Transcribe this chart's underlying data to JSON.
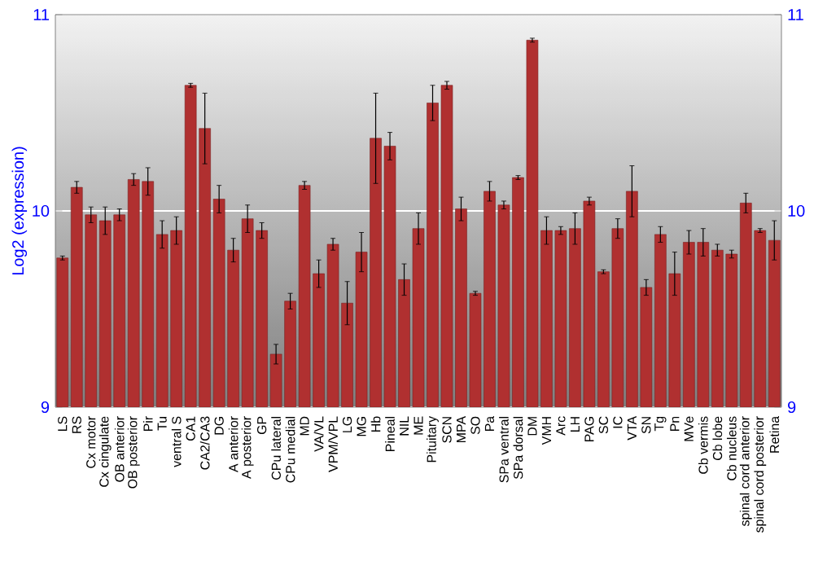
{
  "chart_data": {
    "type": "bar",
    "ylabel": "Log2 (expression)",
    "categories": [
      "LS",
      "RS",
      "Cx motor",
      "Cx cingulate",
      "OB anterior",
      "OB posterior",
      "Pir",
      "Tu",
      "ventral S",
      "CA1",
      "CA2/CA3",
      "DG",
      "A anterior",
      "A posterior",
      "GP",
      "CPu lateral",
      "CPu medial",
      "MD",
      "VA/VL",
      "VPM/VPL",
      "LG",
      "MG",
      "Hb",
      "Pineal",
      "NIL",
      "ME",
      "Pituitary",
      "SCN",
      "MPA",
      "SO",
      "Pa",
      "SPa ventral",
      "SPa dorsal",
      "DM",
      "VMH",
      "Arc",
      "LH",
      "PAG",
      "SC",
      "IC",
      "VTA",
      "SN",
      "Tg",
      "Pn",
      "MVe",
      "Cb vermis",
      "Cb lobe",
      "Cb nucleus",
      "spinal cord anterior",
      "spinal cord posterior",
      "Retina"
    ],
    "values": [
      9.76,
      10.12,
      9.98,
      9.95,
      9.98,
      10.16,
      10.15,
      9.88,
      9.9,
      10.64,
      10.42,
      10.06,
      9.8,
      9.96,
      9.9,
      9.27,
      9.54,
      10.13,
      9.68,
      9.83,
      9.53,
      9.79,
      10.37,
      10.33,
      9.65,
      9.91,
      10.55,
      10.64,
      10.01,
      9.58,
      10.1,
      10.03,
      10.17,
      10.87,
      9.9,
      9.9,
      9.91,
      10.05,
      9.69,
      9.91,
      10.1,
      9.61,
      9.88,
      9.68,
      9.84,
      9.84,
      9.8,
      9.78,
      10.04,
      9.9,
      9.85
    ],
    "errors": [
      0.01,
      0.03,
      0.04,
      0.07,
      0.03,
      0.03,
      0.07,
      0.07,
      0.07,
      0.01,
      0.18,
      0.07,
      0.06,
      0.07,
      0.04,
      0.05,
      0.04,
      0.02,
      0.07,
      0.03,
      0.11,
      0.1,
      0.23,
      0.07,
      0.08,
      0.08,
      0.09,
      0.02,
      0.06,
      0.01,
      0.05,
      0.02,
      0.01,
      0.01,
      0.07,
      0.02,
      0.08,
      0.02,
      0.01,
      0.05,
      0.13,
      0.04,
      0.04,
      0.11,
      0.06,
      0.07,
      0.03,
      0.02,
      0.05,
      0.01,
      0.1
    ],
    "color": "#b03030",
    "ylim": [
      9,
      11
    ],
    "yticks": [
      9,
      10,
      11
    ],
    "y2lim": [
      9,
      11
    ],
    "y2ticks": [
      9,
      10,
      11
    ],
    "grid": "y"
  }
}
